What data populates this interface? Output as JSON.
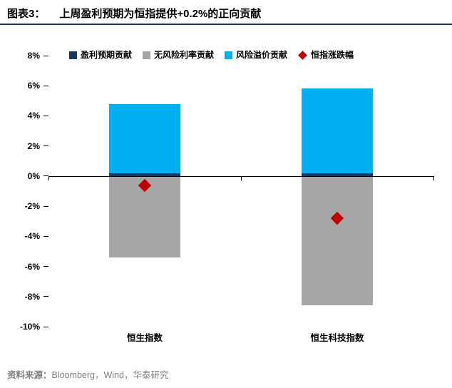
{
  "header": {
    "label": "图表3：",
    "title": "上周盈利预期为恒指提供+0.2%的正向贡献"
  },
  "footer": {
    "label": "资料来源：",
    "text": "Bloomberg，Wind，华泰研究"
  },
  "chart_data": {
    "type": "bar",
    "stacked": true,
    "grid": false,
    "legend_position": "top",
    "categories": [
      "恒生指数",
      "恒生科技指数"
    ],
    "series": [
      {
        "name": "盈利预期贡献",
        "color": "#17375e",
        "values": [
          0.2,
          0.2
        ]
      },
      {
        "name": "无风险利率贡献",
        "color": "#a6a6a6",
        "values": [
          -5.4,
          -8.6
        ]
      },
      {
        "name": "风险溢价贡献",
        "color": "#00b0f0",
        "values": [
          4.6,
          5.6
        ]
      }
    ],
    "markers": {
      "name": "恒指涨跌幅",
      "shape": "diamond",
      "color": "#c00000",
      "values": [
        -0.6,
        -2.8
      ]
    },
    "ylim": [
      -10,
      8
    ],
    "ytick_step": 2,
    "ytick_suffix": "%",
    "axis_color": "#000000"
  }
}
